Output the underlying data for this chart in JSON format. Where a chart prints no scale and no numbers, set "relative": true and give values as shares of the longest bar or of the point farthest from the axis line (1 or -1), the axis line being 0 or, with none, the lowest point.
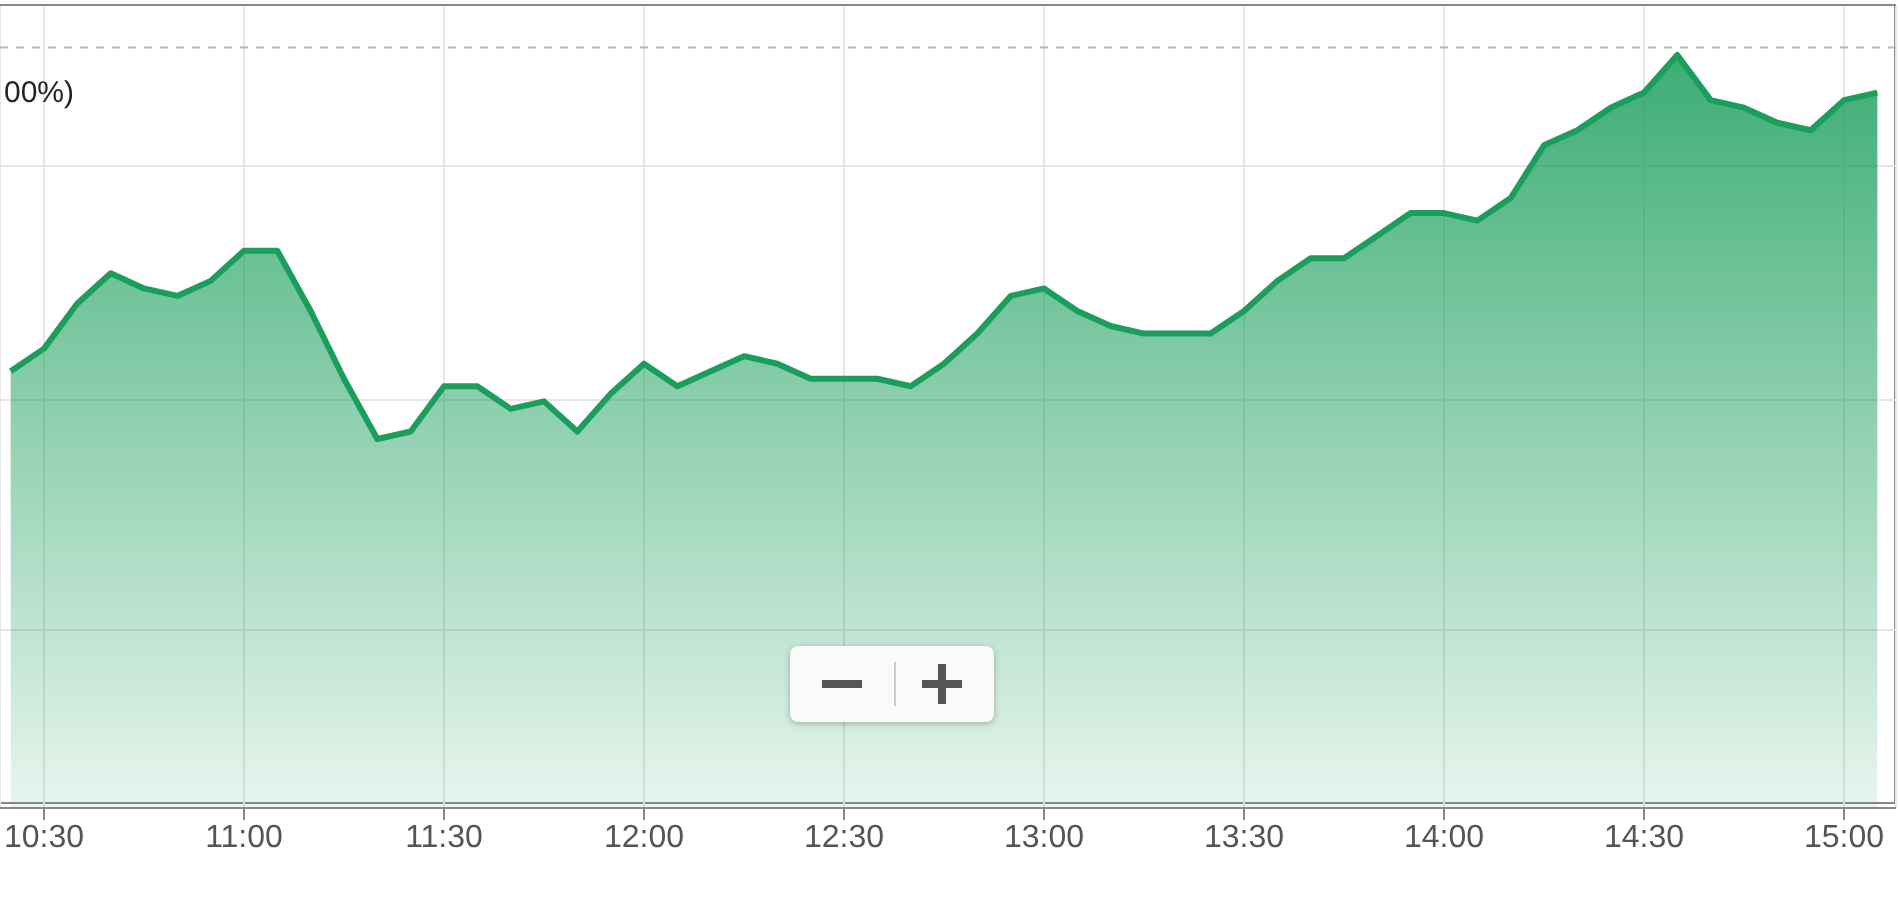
{
  "chart_data": {
    "type": "area",
    "relative": true,
    "x": [
      10.4167,
      10.5,
      10.5833,
      10.6667,
      10.75,
      10.8333,
      10.9167,
      11,
      11.0833,
      11.1667,
      11.25,
      11.3333,
      11.4167,
      11.5,
      11.5833,
      11.6667,
      11.75,
      11.8333,
      11.9167,
      12,
      12.0833,
      12.1667,
      12.25,
      12.3333,
      12.4167,
      12.5,
      12.5833,
      12.6667,
      12.75,
      12.8333,
      12.9167,
      13,
      13.0833,
      13.1667,
      13.25,
      13.3333,
      13.4167,
      13.5,
      13.5833,
      13.6667,
      13.75,
      13.8333,
      13.9167,
      14,
      14.0833,
      14.1667,
      14.25,
      14.3333,
      14.4167,
      14.5,
      14.5833,
      14.6667,
      14.75,
      14.8333,
      14.9167,
      15,
      15.0833
    ],
    "series": [
      {
        "color": "#1a9e5c",
        "values": [
          0.58,
          0.61,
          0.67,
          0.71,
          0.69,
          0.68,
          0.7,
          0.74,
          0.74,
          0.66,
          0.57,
          0.49,
          0.5,
          0.56,
          0.56,
          0.53,
          0.54,
          0.5,
          0.55,
          0.59,
          0.56,
          0.58,
          0.6,
          0.59,
          0.57,
          0.57,
          0.57,
          0.56,
          0.59,
          0.63,
          0.68,
          0.69,
          0.66,
          0.64,
          0.63,
          0.63,
          0.63,
          0.66,
          0.7,
          0.73,
          0.73,
          0.76,
          0.79,
          0.79,
          0.78,
          0.81,
          0.88,
          0.9,
          0.93,
          0.95,
          1,
          0.94,
          0.93,
          0.91,
          0.9,
          0.94,
          0.95
        ]
      }
    ],
    "xlim": [
      10.39,
      15.13
    ],
    "xticks": [
      {
        "value": 10.5,
        "label": "10:30"
      },
      {
        "value": 11,
        "label": "11:00"
      },
      {
        "value": 11.5,
        "label": "11:30"
      },
      {
        "value": 12,
        "label": "12:00"
      },
      {
        "value": 12.5,
        "label": "12:30"
      },
      {
        "value": 13,
        "label": "13:00"
      },
      {
        "value": 13.5,
        "label": "13:30"
      },
      {
        "value": 14,
        "label": "14:00"
      },
      {
        "value": 14.5,
        "label": "14:30"
      },
      {
        "value": 15,
        "label": "15:00"
      }
    ],
    "ref_lines": [
      {
        "axis": "y",
        "value": 1.01,
        "color": "#9ccc9c",
        "line_style": "dashed"
      }
    ],
    "annotations": [
      "00%)"
    ],
    "grid": true,
    "marker": "none",
    "line_style": "solid"
  }
}
